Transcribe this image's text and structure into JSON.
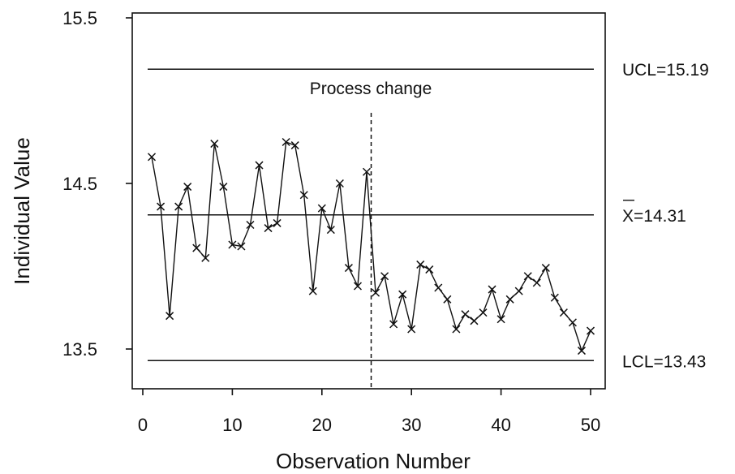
{
  "chart_data": {
    "type": "line",
    "xlabel": "Observation Number",
    "ylabel": "Individual Value",
    "xlim": [
      0,
      50
    ],
    "ylim": [
      13.5,
      15.5
    ],
    "xticks": [
      "0",
      "10",
      "20",
      "30",
      "40",
      "50"
    ],
    "yticks": [
      "13.5",
      "14.5",
      "15.5"
    ],
    "grid": false,
    "x": [
      1,
      2,
      3,
      4,
      5,
      6,
      7,
      8,
      9,
      10,
      11,
      12,
      13,
      14,
      15,
      16,
      17,
      18,
      19,
      20,
      21,
      22,
      23,
      24,
      25,
      26,
      27,
      28,
      29,
      30,
      31,
      32,
      33,
      34,
      35,
      36,
      37,
      38,
      39,
      40,
      41,
      42,
      43,
      44,
      45,
      46,
      47,
      48,
      49,
      50
    ],
    "values": [
      14.66,
      14.36,
      13.7,
      14.36,
      14.48,
      14.11,
      14.05,
      14.74,
      14.48,
      14.13,
      14.12,
      14.25,
      14.61,
      14.23,
      14.26,
      14.75,
      14.73,
      14.43,
      13.85,
      14.35,
      14.22,
      14.5,
      13.99,
      13.88,
      14.57,
      13.84,
      13.94,
      13.65,
      13.83,
      13.62,
      14.01,
      13.98,
      13.87,
      13.8,
      13.62,
      13.71,
      13.67,
      13.72,
      13.86,
      13.68,
      13.8,
      13.85,
      13.94,
      13.9,
      13.99,
      13.81,
      13.72,
      13.66,
      13.49,
      13.61
    ],
    "marker": "x",
    "control_lines": [
      {
        "name": "UCL",
        "label": "UCL=15.19",
        "value": 15.19
      },
      {
        "name": "CL",
        "label": "X=14.31",
        "value": 14.31
      },
      {
        "name": "LCL",
        "label": "LCL=13.43",
        "value": 13.43
      }
    ],
    "annotations": [
      {
        "text": "Process change",
        "x": 25.5,
        "style": "dashed-vertical"
      }
    ]
  }
}
